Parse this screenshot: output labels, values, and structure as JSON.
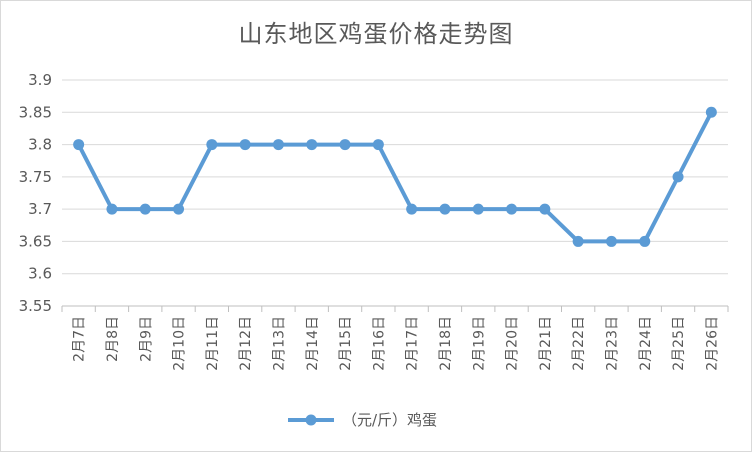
{
  "chart_data": {
    "type": "line",
    "title": "山东地区鸡蛋价格走势图",
    "categories": [
      "2月7日",
      "2月8日",
      "2月9日",
      "2月10日",
      "2月11日",
      "2月12日",
      "2月13日",
      "2月14日",
      "2月15日",
      "2月16日",
      "2月17日",
      "2月18日",
      "2月19日",
      "2月20日",
      "2月21日",
      "2月22日",
      "2月23日",
      "2月24日",
      "2月25日",
      "2月26日"
    ],
    "series": [
      {
        "name": "（元/斤）鸡蛋",
        "values": [
          3.8,
          3.7,
          3.7,
          3.7,
          3.8,
          3.8,
          3.8,
          3.8,
          3.8,
          3.8,
          3.7,
          3.7,
          3.7,
          3.7,
          3.7,
          3.65,
          3.65,
          3.65,
          3.75,
          3.85
        ]
      }
    ],
    "yticks": [
      "3.55",
      "3.6",
      "3.65",
      "3.7",
      "3.75",
      "3.8",
      "3.85",
      "3.9"
    ],
    "ylim": [
      3.55,
      3.9
    ],
    "grid": true,
    "legend": "bottom",
    "colors": {
      "series": "#5b9bd5",
      "grid": "#d9d9d9",
      "text": "#595959"
    }
  }
}
